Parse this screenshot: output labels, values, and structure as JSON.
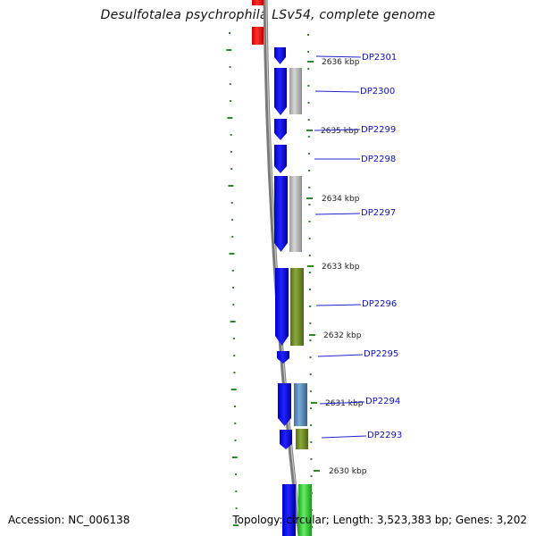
{
  "title": "Desulfotalea psychrophila LSv54, complete genome",
  "footer": {
    "accession": "Accession: NC_006138",
    "summary": "Topology: circular; Length: 3,523,383 bp; Genes: 3,202"
  },
  "ticks": [
    "2636 kbp",
    "2635 kbp",
    "2634 kbp",
    "2633 kbp",
    "2632 kbp",
    "2631 kbp",
    "2630 kbp"
  ],
  "genes": [
    "DP2301",
    "DP2300",
    "DP2299",
    "DP2298",
    "DP2297",
    "DP2296",
    "DP2295",
    "DP2294",
    "DP2293"
  ],
  "colors": {
    "cds": "#0000ff",
    "gray": "#bdbdbd",
    "olive": "#6e8f20",
    "steel": "#5b8fc0",
    "green": "#3fcf3f",
    "rna": "#ff0000",
    "backbone": "#808080",
    "gc": "#2a8a2a",
    "label": "#0000cc"
  }
}
